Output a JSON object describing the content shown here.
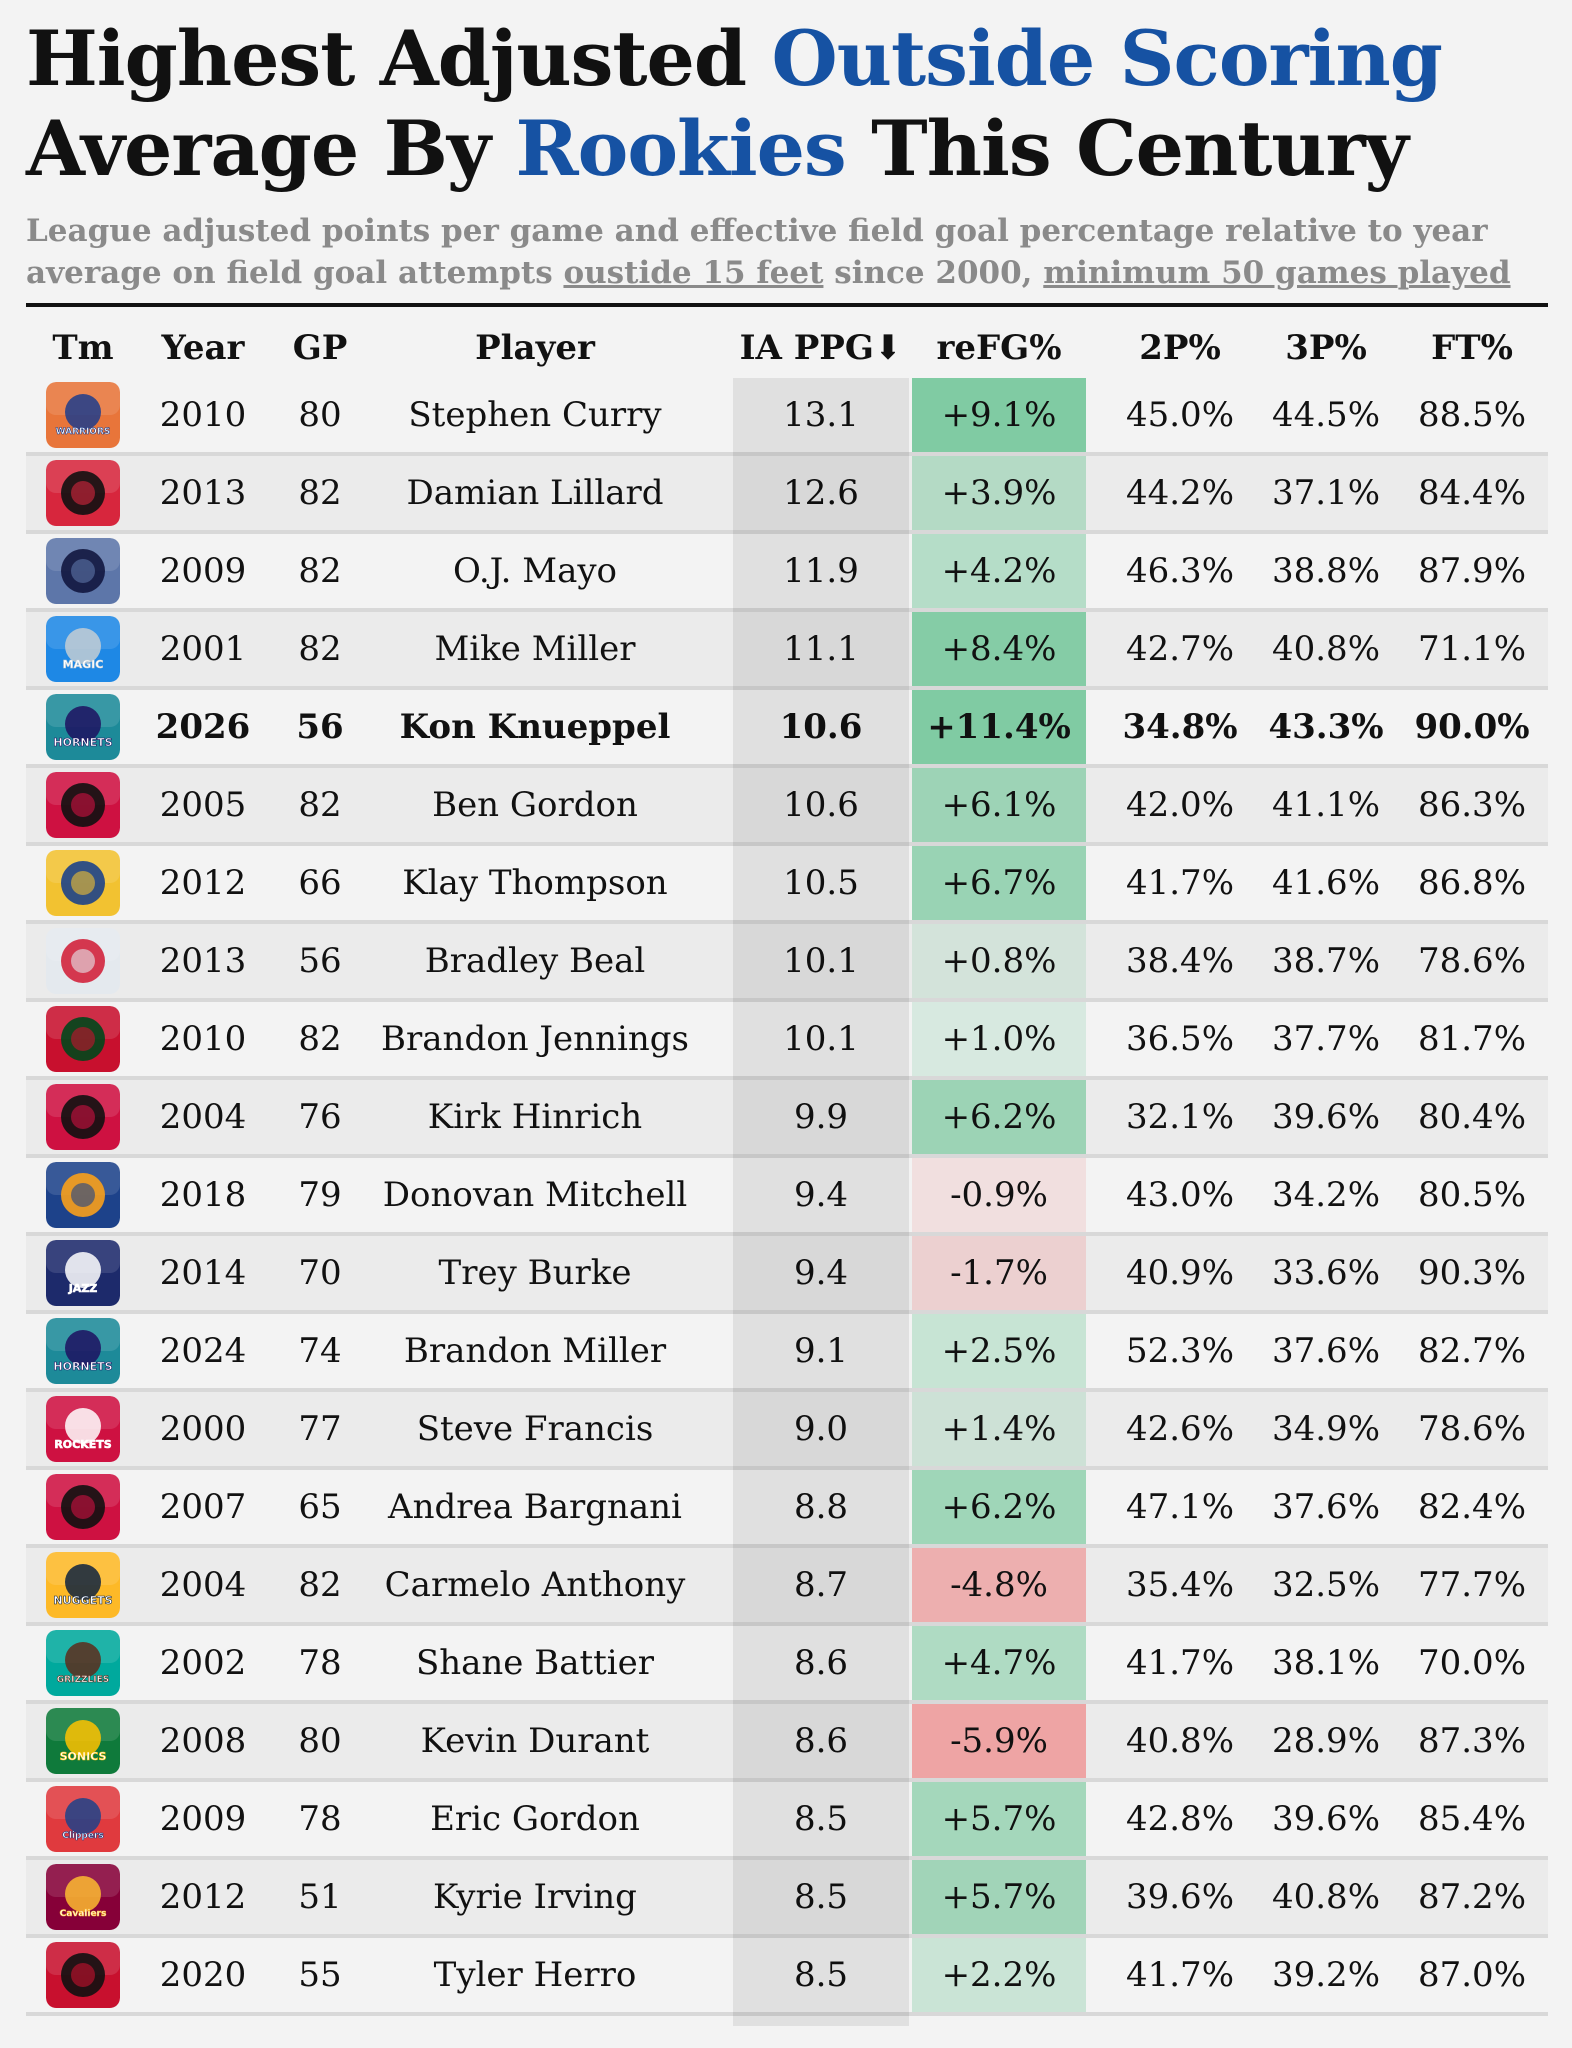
{
  "title": {
    "line1_a": "Highest Adjusted ",
    "line1_b": "Outside Scoring",
    "line2_a": "Average By ",
    "line2_b": "Rookies",
    "line2_c": " This Century"
  },
  "subtitle": {
    "part1": "League adjusted points per game and effective field goal percentage relative to year average on field goal attempts ",
    "link1": "oustide 15 feet",
    "part2": " since 2000, ",
    "link2": "minimum 50 games played"
  },
  "colors": {
    "accent": "#1652a3",
    "subtitle_gray": "#8a8a8a",
    "refg_pos_strong": "#7ccba2",
    "refg_neg_strong": "#f2a9a9"
  },
  "chart_data": {
    "type": "table",
    "columns": [
      "Tm",
      "Year",
      "GP",
      "Player",
      "IA PPG",
      "reFG%",
      "2P%",
      "3P%",
      "FT%"
    ],
    "sort_indicator": "⬇",
    "rows": [
      {
        "team": "warriors-old",
        "year": "2010",
        "gp": "80",
        "player": "Stephen Curry",
        "ppg": "13.1",
        "refg": "+9.1%",
        "refg_value": 9.1,
        "p2": "45.0%",
        "p3": "44.5%",
        "ft": "88.5%",
        "bold": false
      },
      {
        "team": "blazers",
        "year": "2013",
        "gp": "82",
        "player": "Damian Lillard",
        "ppg": "12.6",
        "refg": "+3.9%",
        "refg_value": 3.9,
        "p2": "44.2%",
        "p3": "37.1%",
        "ft": "84.4%",
        "bold": false
      },
      {
        "team": "grizzlies",
        "year": "2009",
        "gp": "82",
        "player": "O.J. Mayo",
        "ppg": "11.9",
        "refg": "+4.2%",
        "refg_value": 4.2,
        "p2": "46.3%",
        "p3": "38.8%",
        "ft": "87.9%",
        "bold": false
      },
      {
        "team": "magic",
        "year": "2001",
        "gp": "82",
        "player": "Mike Miller",
        "ppg": "11.1",
        "refg": "+8.4%",
        "refg_value": 8.4,
        "p2": "42.7%",
        "p3": "40.8%",
        "ft": "71.1%",
        "bold": false
      },
      {
        "team": "hornets",
        "year": "2026",
        "gp": "56",
        "player": "Kon Knueppel",
        "ppg": "10.6",
        "refg": "+11.4%",
        "refg_value": 11.4,
        "p2": "34.8%",
        "p3": "43.3%",
        "ft": "90.0%",
        "bold": true
      },
      {
        "team": "bulls",
        "year": "2005",
        "gp": "82",
        "player": "Ben Gordon",
        "ppg": "10.6",
        "refg": "+6.1%",
        "refg_value": 6.1,
        "p2": "42.0%",
        "p3": "41.1%",
        "ft": "86.3%",
        "bold": false
      },
      {
        "team": "warriors",
        "year": "2012",
        "gp": "66",
        "player": "Klay Thompson",
        "ppg": "10.5",
        "refg": "+6.7%",
        "refg_value": 6.7,
        "p2": "41.7%",
        "p3": "41.6%",
        "ft": "86.8%",
        "bold": false
      },
      {
        "team": "wizards",
        "year": "2013",
        "gp": "56",
        "player": "Bradley Beal",
        "ppg": "10.1",
        "refg": "+0.8%",
        "refg_value": 0.8,
        "p2": "38.4%",
        "p3": "38.7%",
        "ft": "78.6%",
        "bold": false
      },
      {
        "team": "bucks",
        "year": "2010",
        "gp": "82",
        "player": "Brandon Jennings",
        "ppg": "10.1",
        "refg": "+1.0%",
        "refg_value": 1.0,
        "p2": "36.5%",
        "p3": "37.7%",
        "ft": "81.7%",
        "bold": false
      },
      {
        "team": "bulls",
        "year": "2004",
        "gp": "76",
        "player": "Kirk Hinrich",
        "ppg": "9.9",
        "refg": "+6.2%",
        "refg_value": 6.2,
        "p2": "32.1%",
        "p3": "39.6%",
        "ft": "80.4%",
        "bold": false
      },
      {
        "team": "jazz-new",
        "year": "2018",
        "gp": "79",
        "player": "Donovan Mitchell",
        "ppg": "9.4",
        "refg": "-0.9%",
        "refg_value": -0.9,
        "p2": "43.0%",
        "p3": "34.2%",
        "ft": "80.5%",
        "bold": false
      },
      {
        "team": "jazz-old",
        "year": "2014",
        "gp": "70",
        "player": "Trey Burke",
        "ppg": "9.4",
        "refg": "-1.7%",
        "refg_value": -1.7,
        "p2": "40.9%",
        "p3": "33.6%",
        "ft": "90.3%",
        "bold": false
      },
      {
        "team": "hornets",
        "year": "2024",
        "gp": "74",
        "player": "Brandon Miller",
        "ppg": "9.1",
        "refg": "+2.5%",
        "refg_value": 2.5,
        "p2": "52.3%",
        "p3": "37.6%",
        "ft": "82.7%",
        "bold": false
      },
      {
        "team": "rockets",
        "year": "2000",
        "gp": "77",
        "player": "Steve Francis",
        "ppg": "9.0",
        "refg": "+1.4%",
        "refg_value": 1.4,
        "p2": "42.6%",
        "p3": "34.9%",
        "ft": "78.6%",
        "bold": false
      },
      {
        "team": "raptors",
        "year": "2007",
        "gp": "65",
        "player": "Andrea Bargnani",
        "ppg": "8.8",
        "refg": "+6.2%",
        "refg_value": 6.2,
        "p2": "47.1%",
        "p3": "37.6%",
        "ft": "82.4%",
        "bold": false
      },
      {
        "team": "nuggets",
        "year": "2004",
        "gp": "82",
        "player": "Carmelo Anthony",
        "ppg": "8.7",
        "refg": "-4.8%",
        "refg_value": -4.8,
        "p2": "35.4%",
        "p3": "32.5%",
        "ft": "77.7%",
        "bold": false
      },
      {
        "team": "grizzlies-old",
        "year": "2002",
        "gp": "78",
        "player": "Shane Battier",
        "ppg": "8.6",
        "refg": "+4.7%",
        "refg_value": 4.7,
        "p2": "41.7%",
        "p3": "38.1%",
        "ft": "70.0%",
        "bold": false
      },
      {
        "team": "sonics",
        "year": "2008",
        "gp": "80",
        "player": "Kevin Durant",
        "ppg": "8.6",
        "refg": "-5.9%",
        "refg_value": -5.9,
        "p2": "40.8%",
        "p3": "28.9%",
        "ft": "87.3%",
        "bold": false
      },
      {
        "team": "clippers",
        "year": "2009",
        "gp": "78",
        "player": "Eric Gordon",
        "ppg": "8.5",
        "refg": "+5.7%",
        "refg_value": 5.7,
        "p2": "42.8%",
        "p3": "39.6%",
        "ft": "85.4%",
        "bold": false
      },
      {
        "team": "cavaliers",
        "year": "2012",
        "gp": "51",
        "player": "Kyrie Irving",
        "ppg": "8.5",
        "refg": "+5.7%",
        "refg_value": 5.7,
        "p2": "39.6%",
        "p3": "40.8%",
        "ft": "87.2%",
        "bold": false
      },
      {
        "team": "heat",
        "year": "2020",
        "gp": "55",
        "player": "Tyler Herro",
        "ppg": "8.5",
        "refg": "+2.2%",
        "refg_value": 2.2,
        "p2": "41.7%",
        "p3": "39.2%",
        "ft": "87.0%",
        "bold": false
      }
    ]
  },
  "team_logos": {
    "warriors-old": {
      "bg": "#e8753a",
      "fg": "#1d3c8c",
      "text": "WARRIORS"
    },
    "blazers": {
      "bg": "#d7263d",
      "fg": "#111111",
      "text": ""
    },
    "grizzlies": {
      "bg": "#5d76a9",
      "fg": "#12173f",
      "text": ""
    },
    "magic": {
      "bg": "#1e88e5",
      "fg": "#c4ced4",
      "text": "MAGIC"
    },
    "hornets": {
      "bg": "#1d8a99",
      "fg": "#1d1160",
      "text": "HORNETS"
    },
    "bulls": {
      "bg": "#ce1141",
      "fg": "#111111",
      "text": ""
    },
    "warriors": {
      "bg": "#f2c231",
      "fg": "#1d428a",
      "text": ""
    },
    "wizards": {
      "bg": "#e4e9ee",
      "fg": "#d2233c",
      "text": ""
    },
    "bucks": {
      "bg": "#c8102e",
      "fg": "#00471b",
      "text": ""
    },
    "jazz-new": {
      "bg": "#1d428a",
      "fg": "#f9a01b",
      "text": ""
    },
    "jazz-old": {
      "bg": "#1d2a6b",
      "fg": "#ffffff",
      "text": "JAZZ"
    },
    "rockets": {
      "bg": "#ce1141",
      "fg": "#ffffff",
      "text": "ROCKETS"
    },
    "raptors": {
      "bg": "#ce1141",
      "fg": "#111111",
      "text": ""
    },
    "nuggets": {
      "bg": "#fdb927",
      "fg": "#0e2240",
      "text": "NUGGETS"
    },
    "grizzlies-old": {
      "bg": "#00a99d",
      "fg": "#5d2c1b",
      "text": "GRIZZLIES"
    },
    "sonics": {
      "bg": "#0f7a3b",
      "fg": "#ffc200",
      "text": "SONICS"
    },
    "clippers": {
      "bg": "#e03a3e",
      "fg": "#1d428a",
      "text": "Clippers"
    },
    "cavaliers": {
      "bg": "#860038",
      "fg": "#fdbb30",
      "text": "Cavaliers"
    },
    "heat": {
      "bg": "#c8102e",
      "fg": "#111111",
      "text": ""
    }
  }
}
